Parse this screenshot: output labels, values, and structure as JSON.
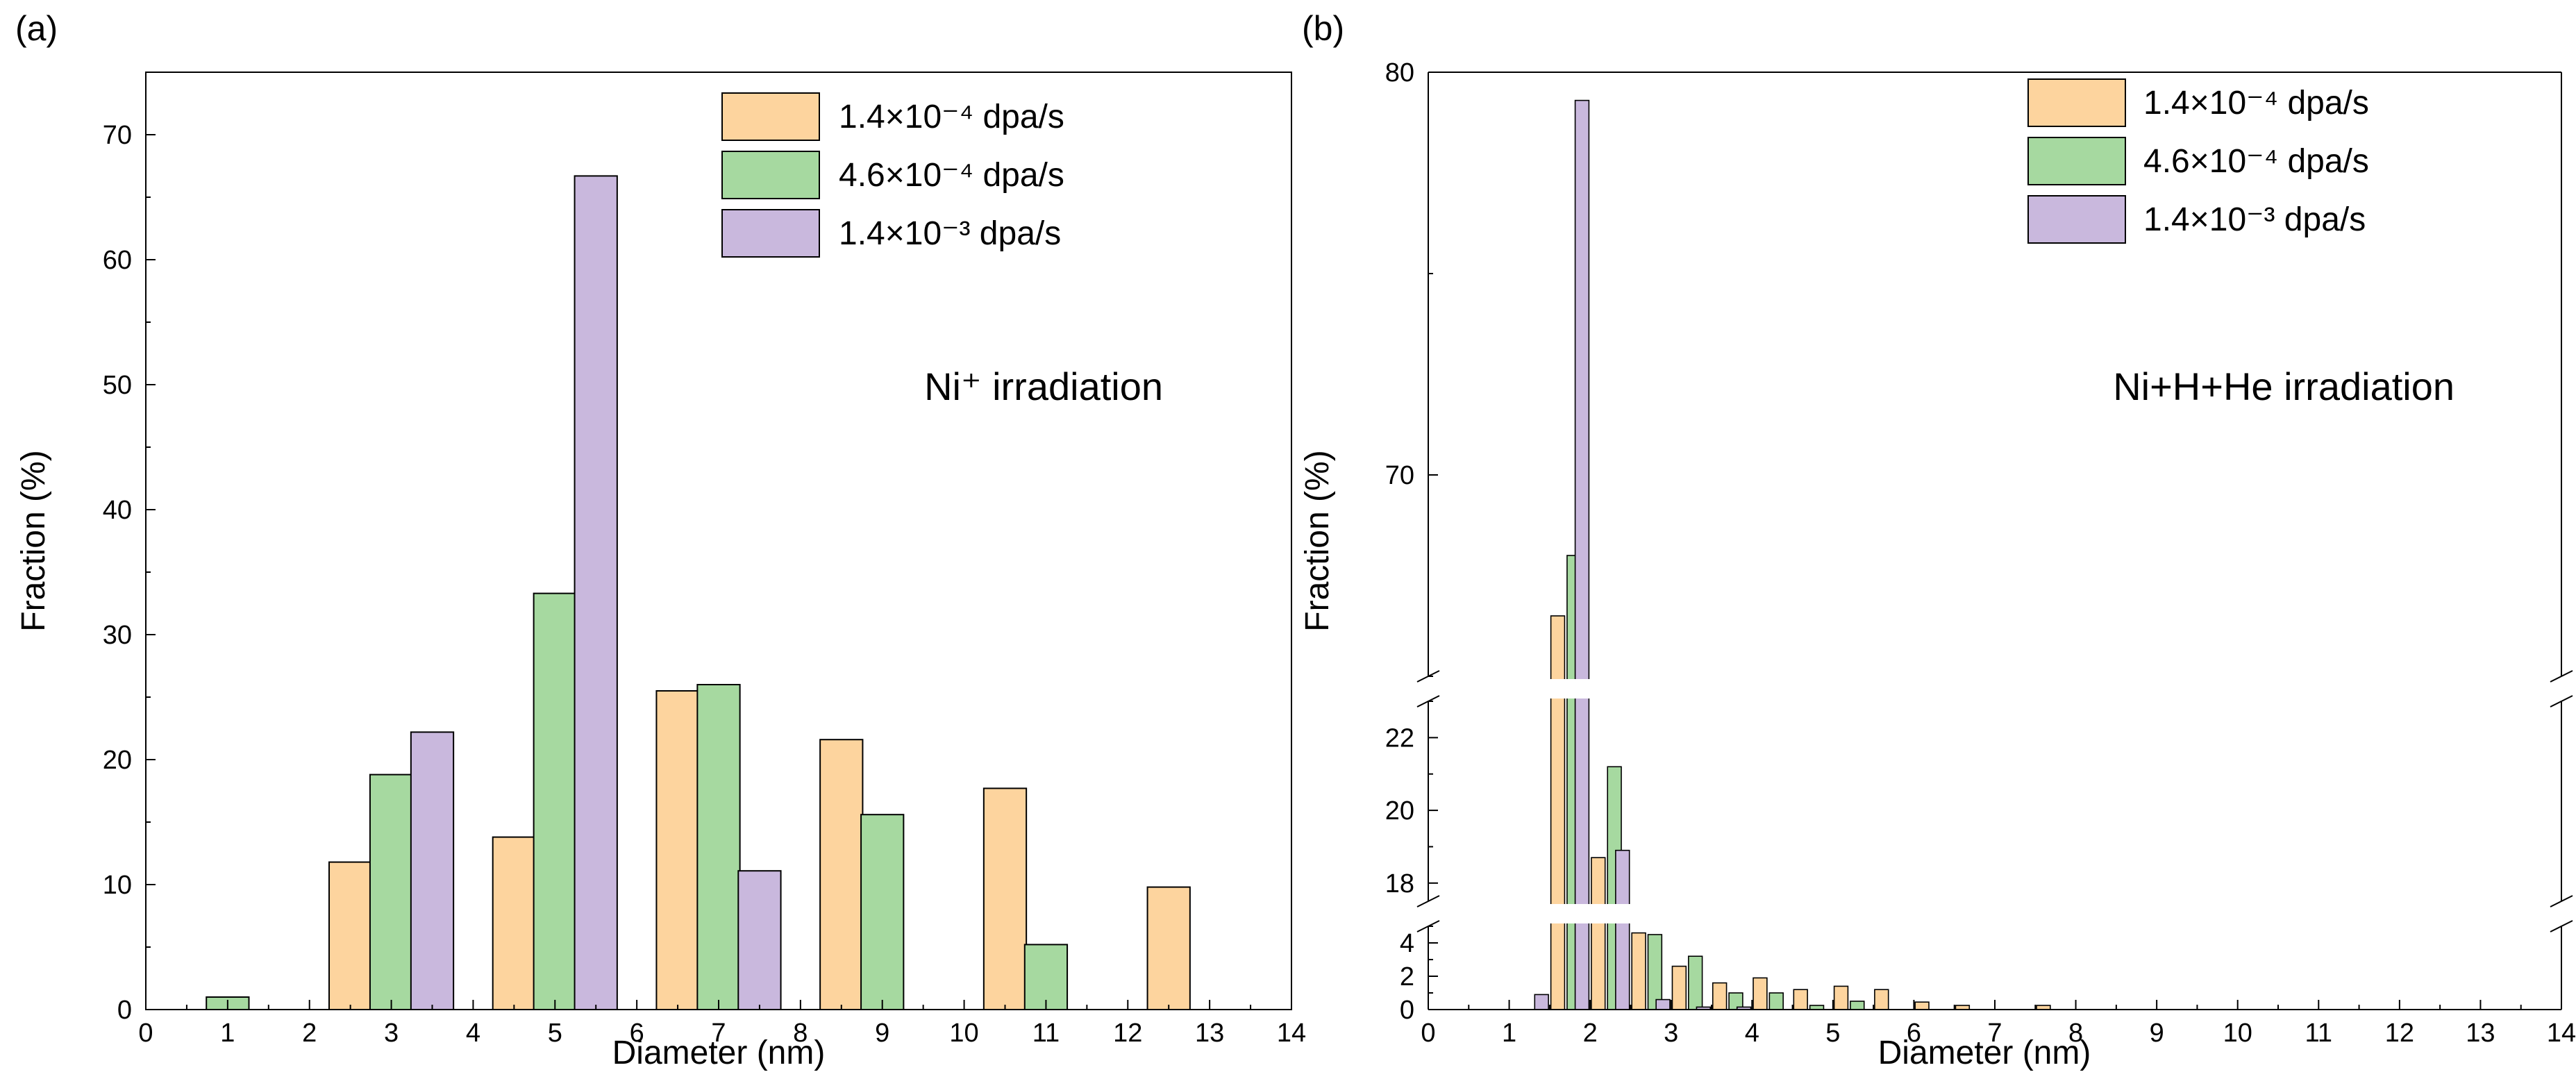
{
  "chart_data": [
    {
      "type": "bar",
      "panel_label": "(a)",
      "annotation": "Ni⁺ irradiation",
      "xlabel": "Diameter (nm)",
      "ylabel": "Fraction (%)",
      "xlim": [
        0,
        14
      ],
      "ylim": [
        0,
        75
      ],
      "xticks": [
        "0",
        "1",
        "2",
        "3",
        "4",
        "5",
        "6",
        "7",
        "8",
        "9",
        "10",
        "11",
        "12",
        "13",
        "14"
      ],
      "yticks": [
        "0",
        "10",
        "20",
        "30",
        "40",
        "50",
        "60",
        "70"
      ],
      "bar_width": 0.52,
      "legend_position": "top-right",
      "series": [
        {
          "name": "1.4×10⁻⁴ dpa/s",
          "color": "#fdd49e",
          "points": [
            [
              2.5,
              11.8
            ],
            [
              4.5,
              13.8
            ],
            [
              6.5,
              25.5
            ],
            [
              8.5,
              21.6
            ],
            [
              10.5,
              17.7
            ],
            [
              12.5,
              9.8
            ]
          ]
        },
        {
          "name": "4.6×10⁻⁴ dpa/s",
          "color": "#a6d9a0",
          "points": [
            [
              1,
              1.0
            ],
            [
              3,
              18.8
            ],
            [
              5,
              33.3
            ],
            [
              7,
              26.0
            ],
            [
              9,
              15.6
            ],
            [
              11,
              5.2
            ]
          ]
        },
        {
          "name": "1.4×10⁻³ dpa/s",
          "color": "#c9b8dd",
          "points": [
            [
              3.5,
              22.2
            ],
            [
              5.5,
              66.7
            ],
            [
              7.5,
              11.1
            ]
          ]
        }
      ]
    },
    {
      "type": "bar",
      "panel_label": "(b)",
      "annotation": "Ni+H+He irradiation",
      "xlabel": "Diameter (nm)",
      "ylabel": "Fraction (%)",
      "xlim": [
        0,
        14
      ],
      "xticks": [
        "0",
        "1",
        "2",
        "3",
        "4",
        "5",
        "6",
        "7",
        "8",
        "9",
        "10",
        "11",
        "12",
        "13",
        "14"
      ],
      "bar_width": 0.17,
      "legend_position": "top-right",
      "broken_axis": [
        {
          "range": [
            0,
            5
          ],
          "ticks": [
            "0",
            "2",
            "4"
          ]
        },
        {
          "range": [
            17.5,
            23
          ],
          "ticks": [
            "18",
            "20",
            "22"
          ]
        },
        {
          "range": [
            65,
            80
          ],
          "ticks": [
            "70",
            "80"
          ]
        }
      ],
      "series": [
        {
          "name": "1.4×10⁻⁴ dpa/s",
          "color": "#fdd49e",
          "points": [
            [
              1.6,
              66.5
            ],
            [
              2.1,
              18.7
            ],
            [
              2.6,
              4.6
            ],
            [
              3.1,
              2.6
            ],
            [
              3.6,
              1.6
            ],
            [
              4.1,
              1.9
            ],
            [
              4.6,
              1.2
            ],
            [
              5.1,
              1.4
            ],
            [
              5.6,
              1.2
            ],
            [
              6.1,
              0.45
            ],
            [
              6.6,
              0.25
            ],
            [
              7.6,
              0.25
            ]
          ]
        },
        {
          "name": "4.6×10⁻⁴ dpa/s",
          "color": "#a6d9a0",
          "points": [
            [
              1.8,
              68.0
            ],
            [
              2.3,
              21.2
            ],
            [
              2.8,
              4.5
            ],
            [
              3.3,
              3.2
            ],
            [
              3.8,
              1.0
            ],
            [
              4.3,
              1.0
            ],
            [
              4.8,
              0.25
            ],
            [
              5.3,
              0.5
            ]
          ]
        },
        {
          "name": "1.4×10⁻³ dpa/s",
          "color": "#c9b8dd",
          "points": [
            [
              1.4,
              0.9
            ],
            [
              1.9,
              79.3
            ],
            [
              2.4,
              18.9
            ],
            [
              2.9,
              0.6
            ],
            [
              3.4,
              0.15
            ],
            [
              3.9,
              0.15
            ]
          ]
        }
      ]
    }
  ]
}
